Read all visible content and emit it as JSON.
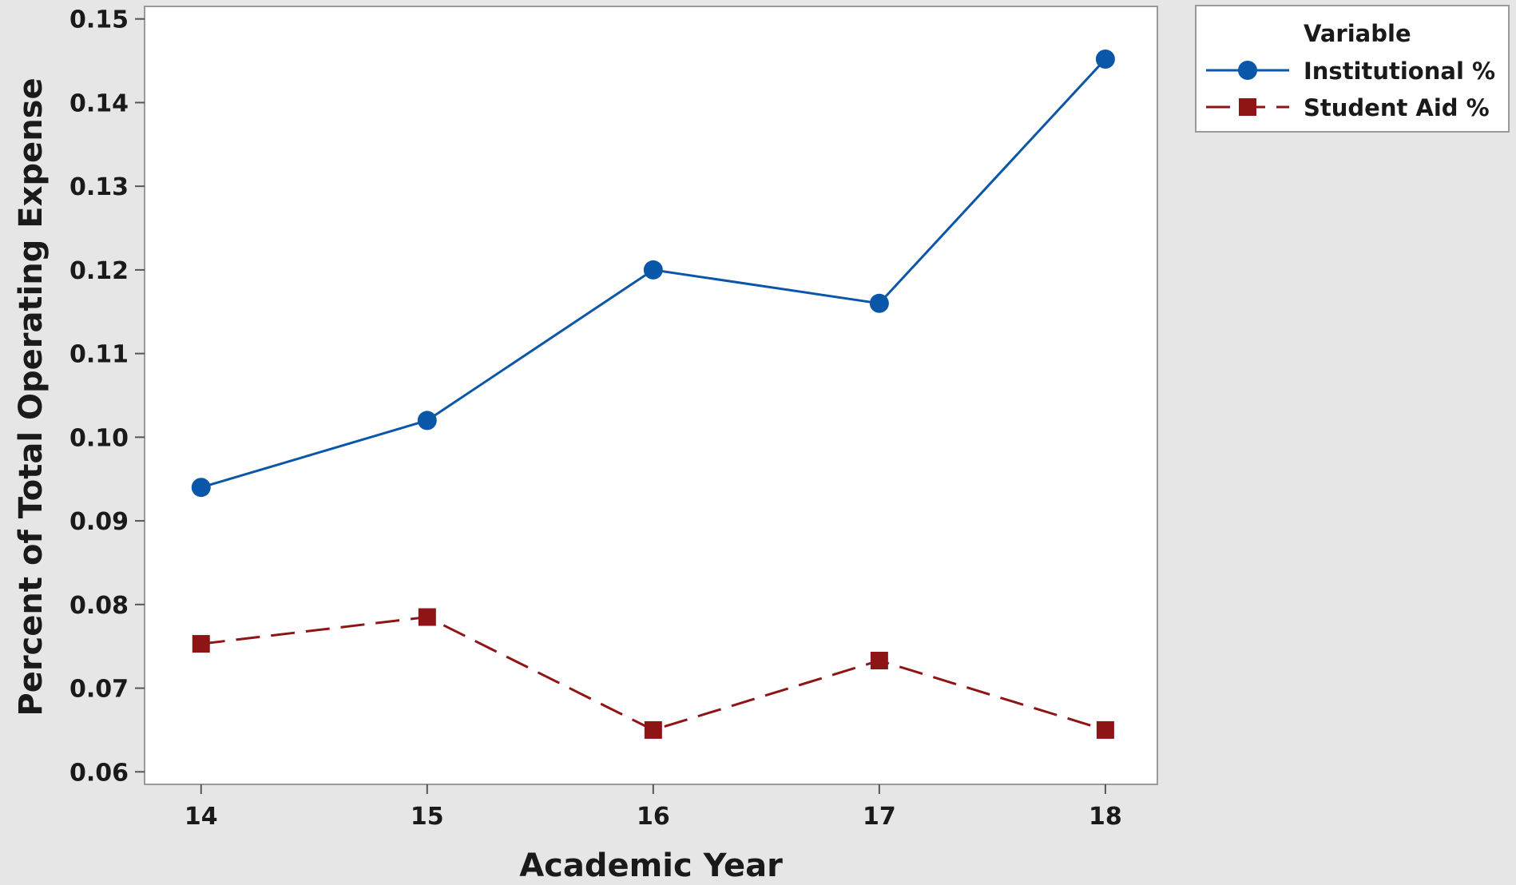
{
  "chart_data": {
    "type": "line",
    "title": "",
    "xlabel": "Academic Year",
    "ylabel": "Percent of Total Operating Expense",
    "x": [
      14,
      15,
      16,
      17,
      18
    ],
    "x_tick_labels": [
      "14",
      "15",
      "16",
      "17",
      "18"
    ],
    "xlim": [
      13.75,
      18.23
    ],
    "ylim": [
      0.0585,
      0.1515
    ],
    "y_ticks": [
      0.06,
      0.07,
      0.08,
      0.09,
      0.1,
      0.11,
      0.12,
      0.13,
      0.14,
      0.15
    ],
    "y_tick_labels": [
      "0.06",
      "0.07",
      "0.08",
      "0.09",
      "0.10",
      "0.11",
      "0.12",
      "0.13",
      "0.14",
      "0.15"
    ],
    "grid": false,
    "legend": {
      "title": "Variable",
      "placement": "right-top, outside plot"
    },
    "series": [
      {
        "name": "Institutional %",
        "values": [
          0.094,
          0.102,
          0.12,
          0.116,
          0.1452
        ],
        "color": "#0a56a8",
        "marker": "circle",
        "line_style": "solid"
      },
      {
        "name": "Student Aid %",
        "values": [
          0.0753,
          0.0785,
          0.065,
          0.0733,
          0.065
        ],
        "color": "#8e1516",
        "marker": "square",
        "line_style": "dashed"
      }
    ]
  }
}
